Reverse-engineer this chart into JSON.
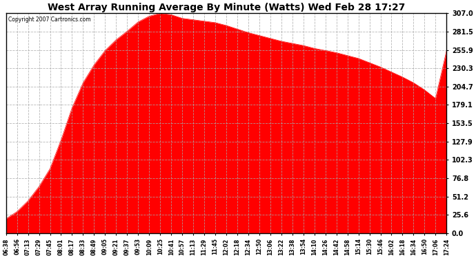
{
  "title": "West Array Running Average By Minute (Watts) Wed Feb 28 17:27",
  "copyright": "Copyright 2007 Cartronics.com",
  "fill_color": "#FF0000",
  "background_color": "#FFFFFF",
  "grid_color": "#AAAAAA",
  "yticks": [
    0.0,
    25.6,
    51.2,
    76.8,
    102.3,
    127.9,
    153.5,
    179.1,
    204.7,
    230.3,
    255.9,
    281.5,
    307.0
  ],
  "ymax": 307.0,
  "ymin": 0.0,
  "xtick_labels": [
    "06:38",
    "06:56",
    "07:13",
    "07:29",
    "07:45",
    "08:01",
    "08:17",
    "08:33",
    "08:49",
    "09:05",
    "09:21",
    "09:37",
    "09:53",
    "10:09",
    "10:25",
    "10:41",
    "10:57",
    "11:13",
    "11:29",
    "11:45",
    "12:02",
    "12:18",
    "12:34",
    "12:50",
    "13:06",
    "13:22",
    "13:38",
    "13:54",
    "14:10",
    "14:26",
    "14:42",
    "14:58",
    "15:14",
    "15:30",
    "15:46",
    "16:02",
    "16:18",
    "16:34",
    "16:50",
    "17:06",
    "17:24"
  ],
  "y_values": [
    20,
    30,
    45,
    65,
    90,
    130,
    175,
    210,
    235,
    255,
    270,
    282,
    295,
    303,
    307,
    305,
    300,
    298,
    296,
    294,
    290,
    285,
    280,
    276,
    272,
    268,
    265,
    262,
    258,
    255,
    252,
    248,
    244,
    238,
    232,
    225,
    218,
    210,
    200,
    188,
    255
  ],
  "title_fontsize": 10,
  "tick_fontsize": 5.5,
  "ytick_fontsize": 7
}
